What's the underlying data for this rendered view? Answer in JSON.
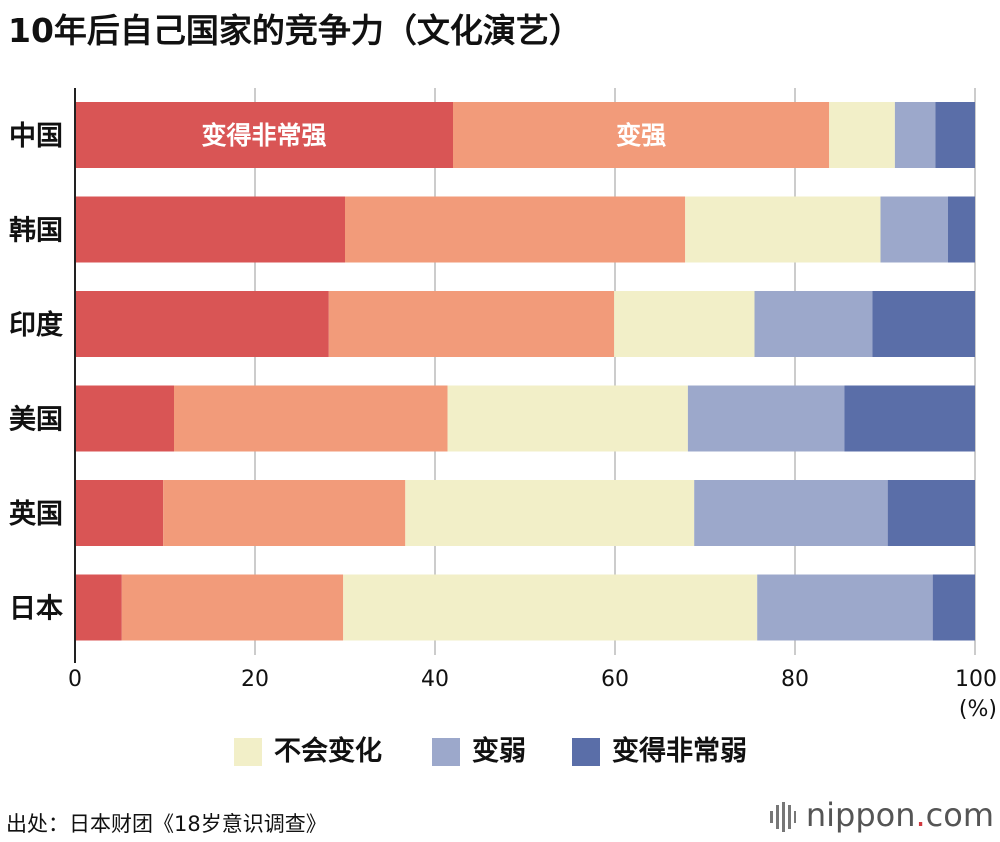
{
  "chart_data": {
    "type": "bar",
    "orientation": "horizontal",
    "stacked": true,
    "title": "10年后自己国家的竞争力（文化演艺）",
    "categories": [
      "中国",
      "韩国",
      "印度",
      "美国",
      "英国",
      "日本"
    ],
    "series": [
      {
        "name": "变得非常强",
        "color": "#d95555",
        "values": [
          42.0,
          30.0,
          28.2,
          11.0,
          9.8,
          5.2
        ]
      },
      {
        "name": "变强",
        "color": "#f29b7a",
        "values": [
          41.8,
          37.8,
          31.7,
          30.4,
          26.9,
          24.6
        ]
      },
      {
        "name": "不会变化",
        "color": "#f2efc8",
        "values": [
          7.3,
          21.7,
          15.6,
          26.7,
          32.1,
          46.0
        ]
      },
      {
        "name": "变弱",
        "color": "#9ca8cb",
        "values": [
          4.5,
          7.5,
          13.1,
          17.4,
          21.5,
          19.5
        ]
      },
      {
        "name": "变得非常弱",
        "color": "#5a6ea8",
        "values": [
          4.4,
          3.0,
          11.4,
          14.5,
          9.7,
          4.7
        ]
      }
    ],
    "segment_labels": [
      "变得非常强",
      "变强"
    ],
    "xlim": [
      0,
      100
    ],
    "xticks": [
      "0",
      "20",
      "40",
      "60",
      "80",
      "100"
    ],
    "xunit": "(%)",
    "grid": true,
    "legend_position": "bottom",
    "legend": [
      "不会变化",
      "变弱",
      "变得非常弱"
    ]
  },
  "source": "出处：日本财团《18岁意识调查》",
  "brand": {
    "name": "nippon",
    "dot": ".",
    "suffix": "com"
  }
}
